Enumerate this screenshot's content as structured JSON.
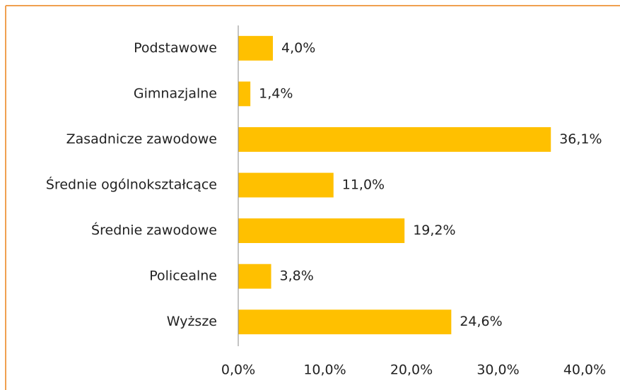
{
  "chart_data": {
    "type": "bar",
    "orientation": "horizontal",
    "categories": [
      "Podstawowe",
      "Gimnazjalne",
      "Zasadnicze zawodowe",
      "Średnie ogólnokształcące",
      "Średnie zawodowe",
      "Policealne",
      "Wyższe"
    ],
    "values": [
      4.0,
      1.4,
      36.1,
      11.0,
      19.2,
      3.8,
      24.6
    ],
    "value_labels": [
      "4,0%",
      "1,4%",
      "36,1%",
      "11,0%",
      "19,2%",
      "3,8%",
      "24,6%"
    ],
    "color": "#ffc000",
    "xlim": [
      0,
      40
    ],
    "xticks": [
      {
        "value": 0,
        "label": "0,0%"
      },
      {
        "value": 10,
        "label": "10,0%"
      },
      {
        "value": 20,
        "label": "20,0%"
      },
      {
        "value": 30,
        "label": "30,0%"
      },
      {
        "value": 40,
        "label": "40,0%"
      }
    ],
    "grid": false
  }
}
